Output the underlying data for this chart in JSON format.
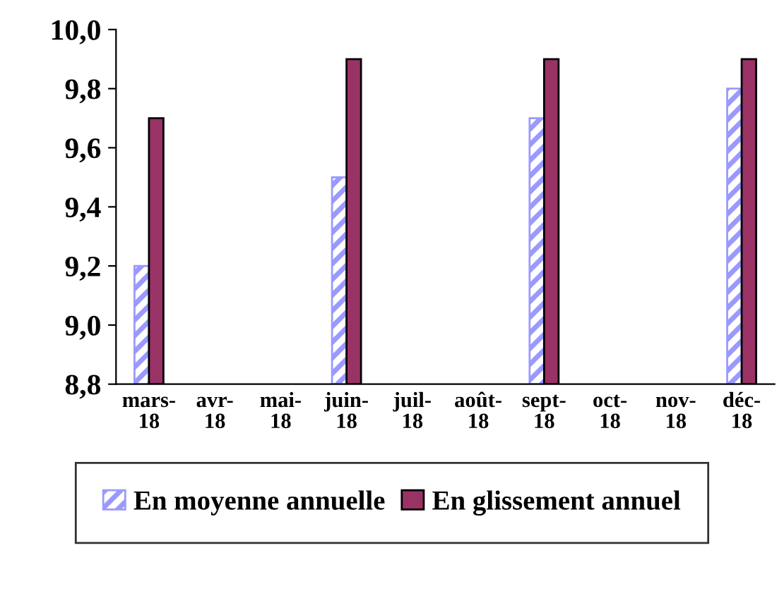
{
  "chart_data": {
    "type": "bar",
    "categories": [
      "mars-\n18",
      "avr-\n18",
      "mai-\n18",
      "juin-\n18",
      "juil-\n18",
      "août-\n18",
      "sept-\n18",
      "oct-\n18",
      "nov-\n18",
      "déc-\n18"
    ],
    "series": [
      {
        "name": "En moyenne annuelle",
        "color": "#9999ff",
        "values": [
          9.2,
          null,
          null,
          9.5,
          null,
          null,
          9.7,
          null,
          null,
          9.8
        ]
      },
      {
        "name": "En glissement annuel",
        "color": "#993366",
        "values": [
          9.7,
          null,
          null,
          9.9,
          null,
          null,
          9.9,
          null,
          null,
          9.9
        ]
      }
    ],
    "ylim": [
      8.8,
      10.0
    ],
    "yticks": [
      {
        "value": 8.8,
        "label": "8,8"
      },
      {
        "value": 9.0,
        "label": "9,0"
      },
      {
        "value": 9.2,
        "label": "9,2"
      },
      {
        "value": 9.4,
        "label": "9,4"
      },
      {
        "value": 9.6,
        "label": "9,6"
      },
      {
        "value": 9.8,
        "label": "9,8"
      },
      {
        "value": 10.0,
        "label": "10,0"
      }
    ],
    "grid": false,
    "legend": "bottom"
  }
}
